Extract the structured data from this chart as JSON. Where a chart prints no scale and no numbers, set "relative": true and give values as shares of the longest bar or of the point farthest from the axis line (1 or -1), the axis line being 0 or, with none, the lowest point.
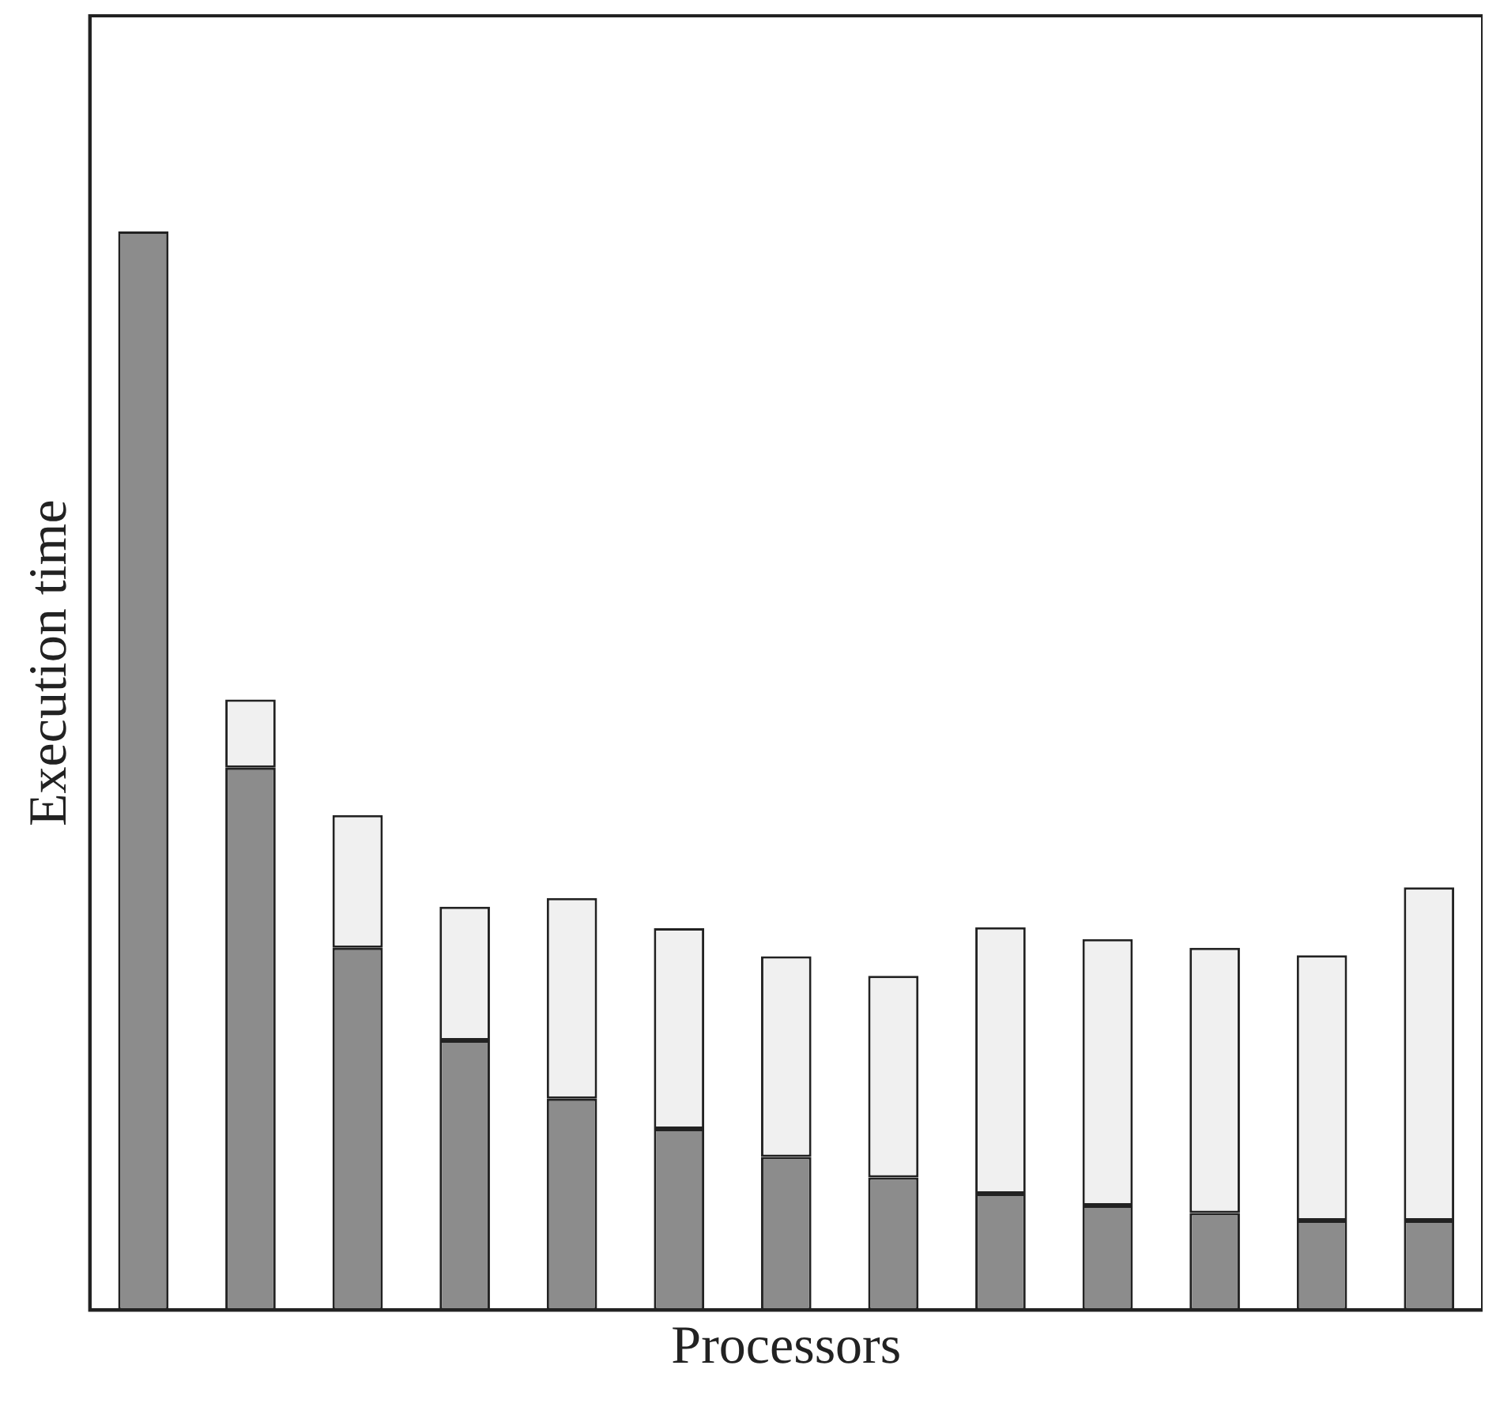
{
  "chart_data": {
    "type": "bar",
    "stacked": true,
    "relative": true,
    "xlabel": "Processors",
    "ylabel": "Execution time",
    "categories": [
      null,
      null,
      null,
      null,
      null,
      null,
      null,
      null,
      null,
      null,
      null,
      null,
      null
    ],
    "series": [
      {
        "color": "#8c8c8c",
        "values": [
          1,
          0.503,
          0.336,
          0.25,
          0.196,
          0.168,
          0.142,
          0.123,
          0.108,
          0.097,
          0.09,
          0.083,
          0.083
        ]
      },
      {
        "color": "#f0f0f0",
        "values": [
          0,
          0.063,
          0.123,
          0.124,
          0.186,
          0.186,
          0.186,
          0.187,
          0.247,
          0.247,
          0.246,
          0.246,
          0.309
        ]
      }
    ],
    "legend": false,
    "grid": false
  }
}
